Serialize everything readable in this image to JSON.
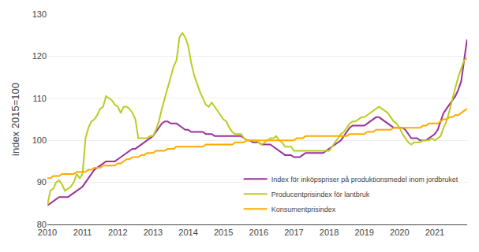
{
  "chart_data": {
    "type": "line",
    "ylabel": "index 2015=100",
    "x": [
      2010,
      2010.0833333333333,
      2010.1666666666667,
      2010.25,
      2010.3333333333333,
      2010.4166666666667,
      2010.5,
      2010.5833333333333,
      2010.6666666666667,
      2010.75,
      2010.8333333333333,
      2010.9166666666667,
      2011,
      2011.0833333333333,
      2011.1666666666667,
      2011.25,
      2011.3333333333333,
      2011.4166666666667,
      2011.5,
      2011.5833333333333,
      2011.6666666666667,
      2011.75,
      2011.8333333333333,
      2011.9166666666667,
      2012,
      2012.0833333333333,
      2012.1666666666667,
      2012.25,
      2012.3333333333333,
      2012.4166666666667,
      2012.5,
      2012.5833333333333,
      2012.6666666666667,
      2012.75,
      2012.8333333333333,
      2012.9166666666667,
      2013,
      2013.0833333333333,
      2013.1666666666667,
      2013.25,
      2013.3333333333333,
      2013.4166666666667,
      2013.5,
      2013.5833333333333,
      2013.6666666666667,
      2013.75,
      2013.8333333333333,
      2013.9166666666667,
      2014,
      2014.0833333333333,
      2014.1666666666667,
      2014.25,
      2014.3333333333333,
      2014.4166666666667,
      2014.5,
      2014.5833333333333,
      2014.6666666666667,
      2014.75,
      2014.8333333333333,
      2014.9166666666667,
      2015,
      2015.0833333333333,
      2015.1666666666667,
      2015.25,
      2015.3333333333333,
      2015.4166666666667,
      2015.5,
      2015.5833333333333,
      2015.6666666666667,
      2015.75,
      2015.8333333333333,
      2015.9166666666667,
      2016,
      2016.0833333333333,
      2016.1666666666667,
      2016.25,
      2016.3333333333333,
      2016.4166666666667,
      2016.5,
      2016.5833333333333,
      2016.6666666666667,
      2016.75,
      2016.8333333333333,
      2016.9166666666667,
      2017,
      2017.0833333333333,
      2017.1666666666667,
      2017.25,
      2017.3333333333333,
      2017.4166666666667,
      2017.5,
      2017.5833333333333,
      2017.6666666666667,
      2017.75,
      2017.8333333333333,
      2017.9166666666667,
      2018,
      2018.0833333333333,
      2018.1666666666667,
      2018.25,
      2018.3333333333333,
      2018.4166666666667,
      2018.5,
      2018.5833333333333,
      2018.6666666666667,
      2018.75,
      2018.8333333333333,
      2018.9166666666667,
      2019,
      2019.0833333333333,
      2019.1666666666667,
      2019.25,
      2019.3333333333333,
      2019.4166666666667,
      2019.5,
      2019.5833333333333,
      2019.6666666666667,
      2019.75,
      2019.8333333333333,
      2019.9166666666667,
      2020,
      2020.0833333333333,
      2020.1666666666667,
      2020.25,
      2020.3333333333333,
      2020.4166666666667,
      2020.5,
      2020.5833333333333,
      2020.6666666666667,
      2020.75,
      2020.8333333333333,
      2020.9166666666667,
      2021,
      2021.0833333333333,
      2021.1666666666667,
      2021.25,
      2021.3333333333333,
      2021.4166666666667,
      2021.5,
      2021.5833333333333,
      2021.6666666666667,
      2021.75,
      2021.8333333333333,
      2021.9166666666667
    ],
    "series": [
      {
        "name": "Index för inköpspriser på produktionsmedel inom jordbruket",
        "color": "#993399",
        "values": [
          84.5,
          85.0,
          85.5,
          86.0,
          86.5,
          86.5,
          86.5,
          86.5,
          87.0,
          87.5,
          88.0,
          88.5,
          89.0,
          90.0,
          91.0,
          92.0,
          93.0,
          93.5,
          94.0,
          94.5,
          95.0,
          95.0,
          95.0,
          95.0,
          95.5,
          96.0,
          96.5,
          97.0,
          97.5,
          98.0,
          98.0,
          98.5,
          99.0,
          99.5,
          100.0,
          100.5,
          101.0,
          102.0,
          103.0,
          104.0,
          104.5,
          104.5,
          104.0,
          104.0,
          104.0,
          103.5,
          103.0,
          102.5,
          102.5,
          102.0,
          102.0,
          102.0,
          102.0,
          102.0,
          101.5,
          101.5,
          101.5,
          101.0,
          101.0,
          101.0,
          101.0,
          101.0,
          101.0,
          101.0,
          101.0,
          101.0,
          101.0,
          100.5,
          100.0,
          100.0,
          99.5,
          99.5,
          99.5,
          99.0,
          99.0,
          99.0,
          99.0,
          98.5,
          98.0,
          97.5,
          97.0,
          96.5,
          96.5,
          96.5,
          96.0,
          96.0,
          96.0,
          96.5,
          97.0,
          97.0,
          97.0,
          97.0,
          97.0,
          97.0,
          97.0,
          97.5,
          98.0,
          98.5,
          99.0,
          99.5,
          100.0,
          101.0,
          102.0,
          103.0,
          103.5,
          103.5,
          103.5,
          103.5,
          103.5,
          104.0,
          104.5,
          105.0,
          105.5,
          105.5,
          105.0,
          104.5,
          104.0,
          103.5,
          103.0,
          103.0,
          103.0,
          103.0,
          102.5,
          101.5,
          100.5,
          100.5,
          100.5,
          100.0,
          100.0,
          100.0,
          100.5,
          101.0,
          101.5,
          102.5,
          104.5,
          106.5,
          107.5,
          108.5,
          109.5,
          110.5,
          112.0,
          114.0,
          119.0,
          124.0
        ]
      },
      {
        "name": "Producentprisindex för lantbruk",
        "color": "#bbcc22",
        "values": [
          84.5,
          88.0,
          88.5,
          90.0,
          90.5,
          89.5,
          88.0,
          88.5,
          89.0,
          90.0,
          92.0,
          91.0,
          92.0,
          100.5,
          103.0,
          104.5,
          105.0,
          106.0,
          107.5,
          108.0,
          110.5,
          110.0,
          109.5,
          108.5,
          108.0,
          106.5,
          108.0,
          108.0,
          107.5,
          106.5,
          105.0,
          100.5,
          100.5,
          100.5,
          100.5,
          101.0,
          101.0,
          102.5,
          104.5,
          107.5,
          110.0,
          112.5,
          114.5,
          117.5,
          119.0,
          124.5,
          125.5,
          124.5,
          122.5,
          118.5,
          115.5,
          113.5,
          111.5,
          110.0,
          108.5,
          108.0,
          109.0,
          108.0,
          107.0,
          106.0,
          105.0,
          104.5,
          103.0,
          102.0,
          101.5,
          101.5,
          101.5,
          100.5,
          100.0,
          100.0,
          100.0,
          100.0,
          99.5,
          99.0,
          99.5,
          100.0,
          100.5,
          100.5,
          101.0,
          100.0,
          99.5,
          98.5,
          98.5,
          98.5,
          97.5,
          97.5,
          97.5,
          97.5,
          97.5,
          97.5,
          97.5,
          97.5,
          97.5,
          97.5,
          97.5,
          97.5,
          97.5,
          98.5,
          99.5,
          100.5,
          101.5,
          102.0,
          103.0,
          104.0,
          104.5,
          104.5,
          105.0,
          105.5,
          105.5,
          106.0,
          106.5,
          107.0,
          107.5,
          108.0,
          107.5,
          107.0,
          106.5,
          105.5,
          104.5,
          104.0,
          103.0,
          101.5,
          100.5,
          99.5,
          99.0,
          99.5,
          99.5,
          99.5,
          100.0,
          100.0,
          100.0,
          100.5,
          100.0,
          100.5,
          101.0,
          103.0,
          104.5,
          107.0,
          110.0,
          112.5,
          115.0,
          117.0,
          119.0,
          119.5
        ]
      },
      {
        "name": "Konsumentprisindex",
        "color": "#ffaa00",
        "values": [
          91.0,
          91.0,
          91.5,
          91.5,
          91.5,
          92.0,
          92.0,
          92.0,
          92.0,
          92.0,
          92.5,
          92.5,
          92.5,
          92.5,
          93.0,
          93.0,
          93.5,
          93.5,
          93.5,
          94.0,
          94.0,
          94.0,
          94.0,
          94.0,
          94.5,
          94.5,
          95.0,
          95.5,
          95.5,
          96.0,
          96.0,
          96.0,
          96.5,
          96.5,
          97.0,
          97.0,
          97.0,
          97.5,
          97.5,
          97.5,
          97.5,
          98.0,
          98.0,
          98.0,
          98.5,
          98.5,
          98.5,
          98.5,
          98.5,
          98.5,
          98.5,
          98.5,
          98.5,
          98.5,
          99.0,
          99.0,
          99.0,
          99.0,
          99.0,
          99.0,
          99.0,
          99.0,
          99.0,
          99.0,
          99.5,
          99.5,
          99.5,
          99.5,
          100.0,
          100.0,
          100.0,
          100.0,
          100.0,
          100.0,
          100.0,
          100.0,
          100.0,
          100.0,
          100.0,
          100.0,
          100.0,
          100.0,
          100.0,
          100.0,
          100.0,
          100.5,
          100.5,
          100.5,
          101.0,
          101.0,
          101.0,
          101.0,
          101.0,
          101.0,
          101.0,
          101.0,
          101.0,
          101.0,
          101.0,
          101.0,
          101.0,
          101.0,
          101.0,
          101.5,
          101.5,
          101.5,
          101.5,
          101.5,
          101.5,
          102.0,
          102.0,
          102.0,
          102.5,
          102.5,
          102.5,
          102.5,
          102.5,
          102.5,
          103.0,
          103.0,
          103.0,
          103.0,
          103.0,
          103.0,
          103.0,
          103.0,
          103.0,
          103.0,
          103.5,
          103.5,
          104.0,
          104.0,
          104.0,
          104.0,
          104.5,
          105.0,
          105.0,
          105.5,
          105.5,
          106.0,
          106.0,
          106.5,
          107.0,
          107.5
        ]
      }
    ],
    "xlim": [
      2010.0,
      2021.92
    ],
    "ylim": [
      80,
      130
    ],
    "xticks": [
      2010,
      2011,
      2012,
      2013,
      2014,
      2015,
      2016,
      2017,
      2018,
      2019,
      2020,
      2021
    ],
    "yticks": [
      80,
      90,
      100,
      110,
      120,
      130
    ],
    "grid": true,
    "legend": "lower right"
  }
}
